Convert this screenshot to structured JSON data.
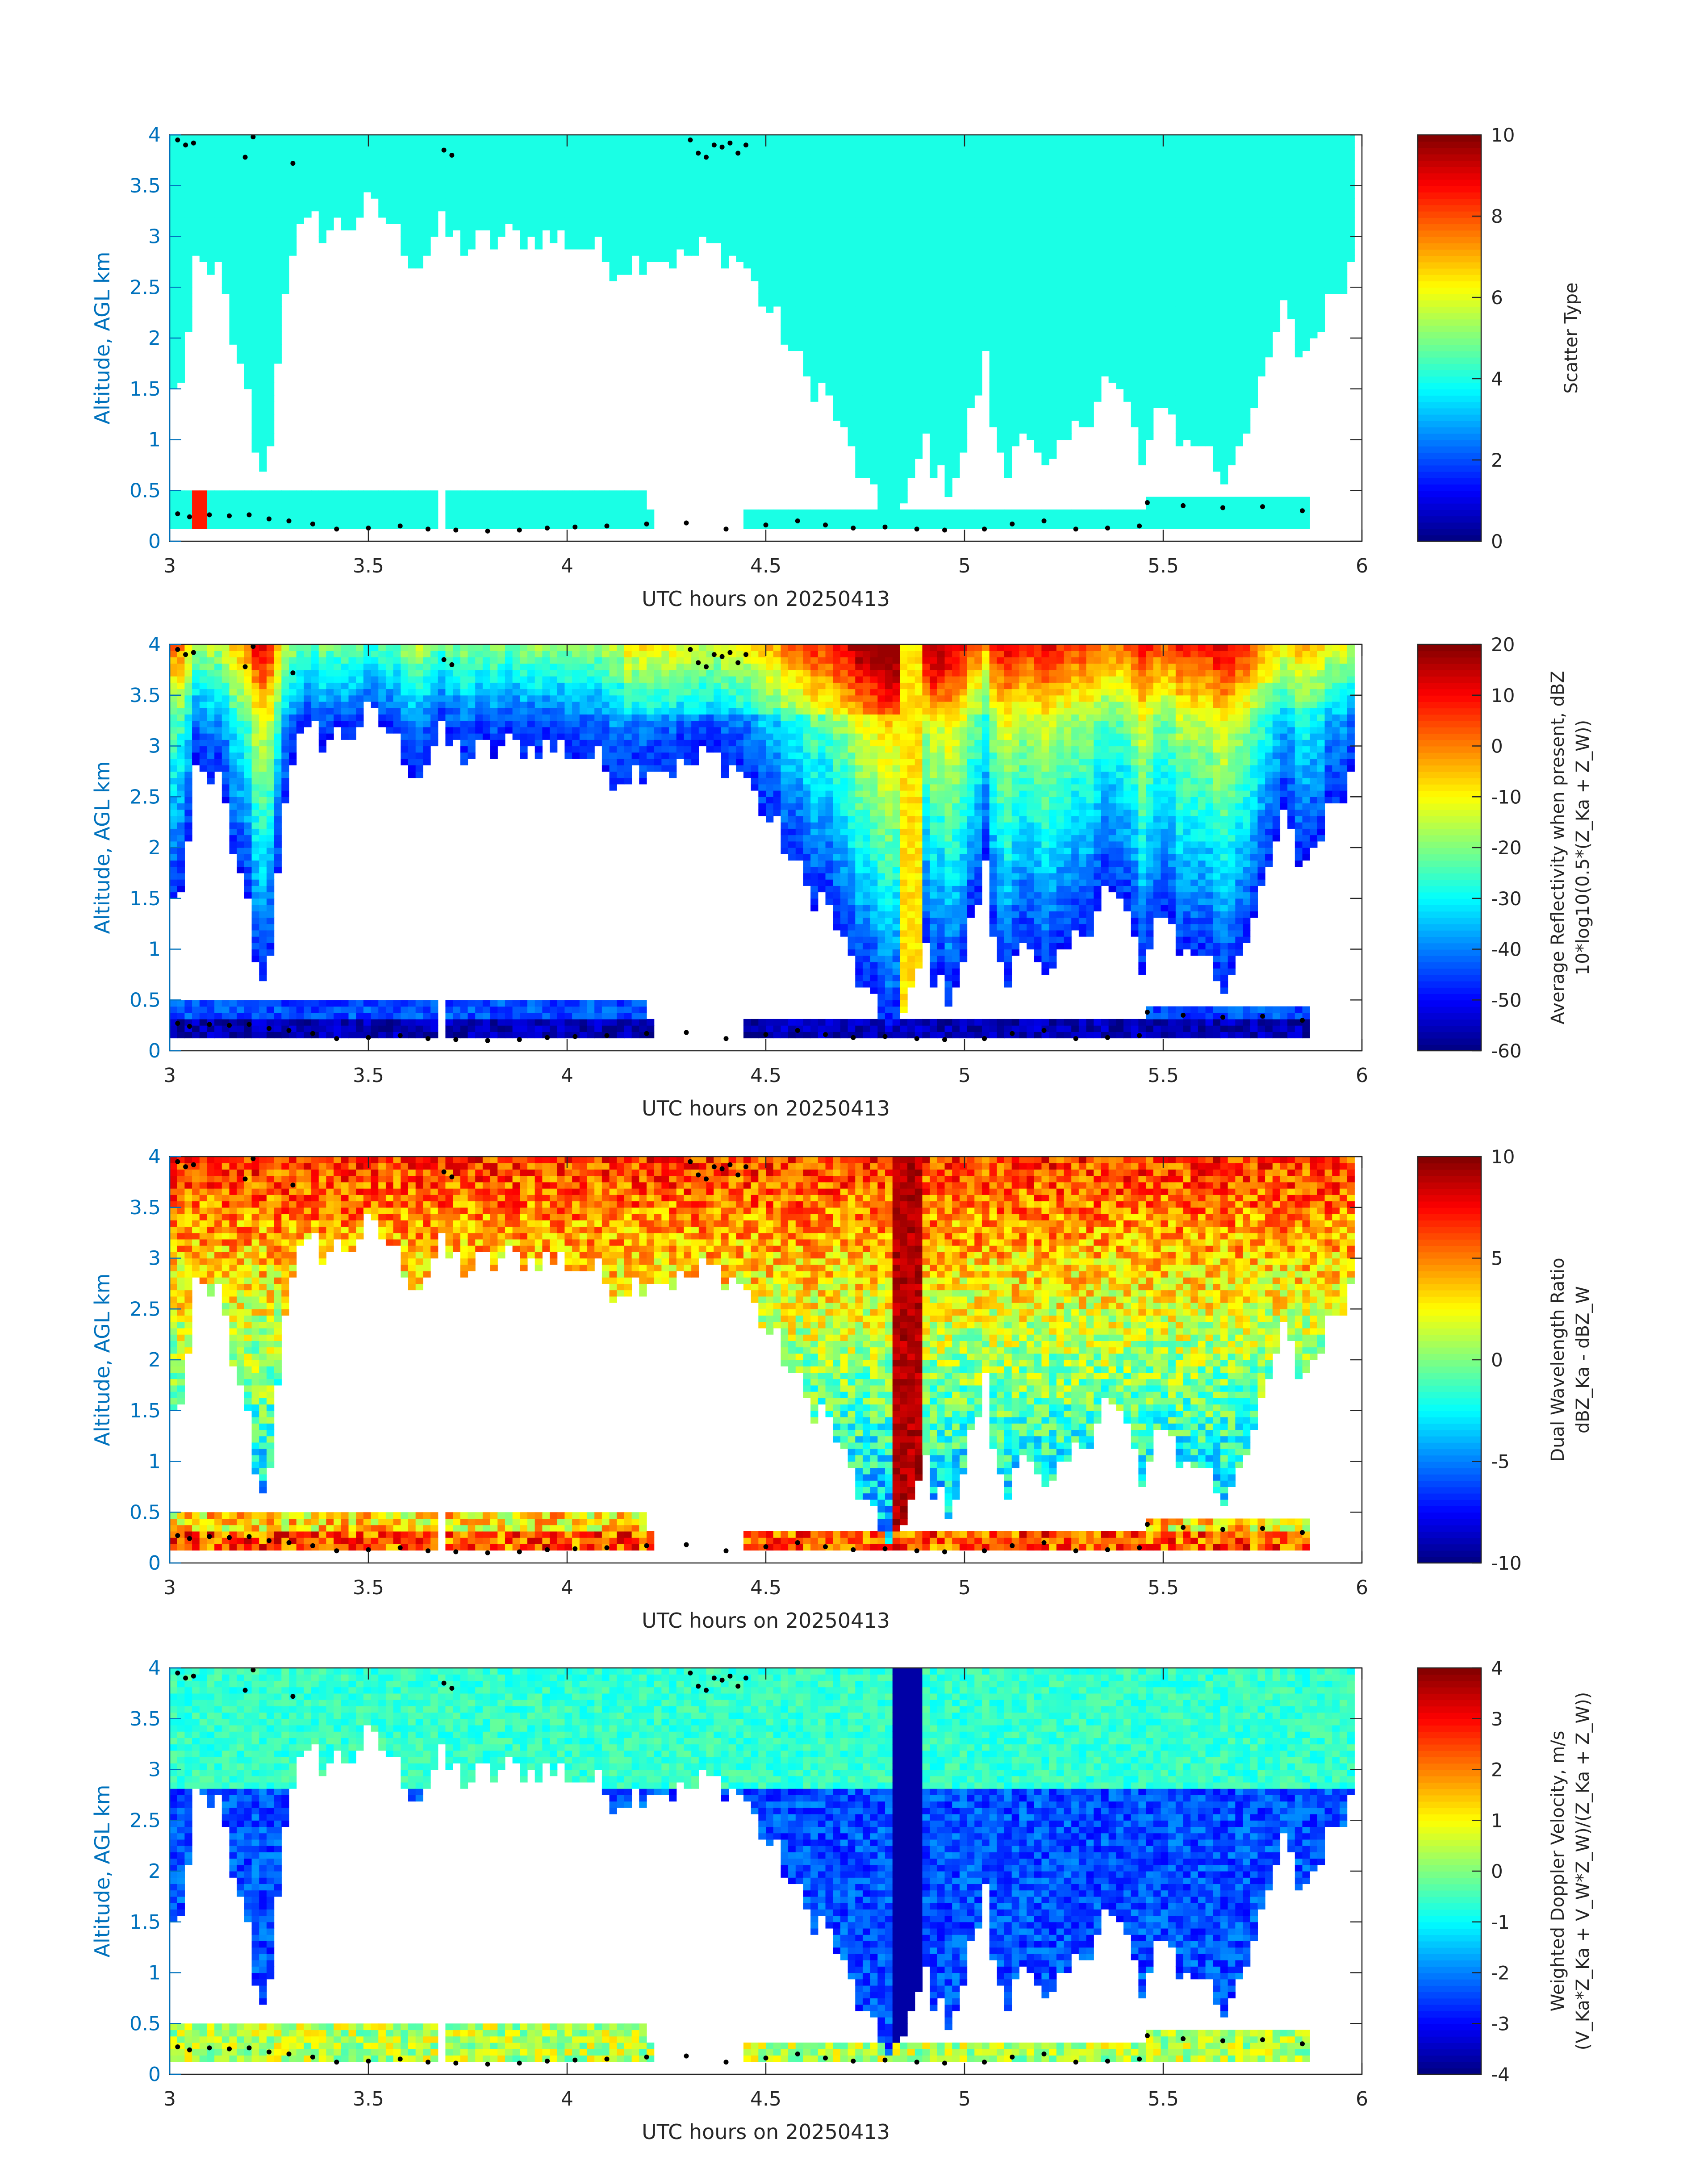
{
  "figure": {
    "xlabel": "UTC hours on 20250413",
    "ylabel": "Altitude, AGL km",
    "xlim": [
      3,
      6
    ],
    "ylim": [
      0,
      4
    ],
    "xticks": [
      "3",
      "3.5",
      "4",
      "4.5",
      "5",
      "5.5",
      "6"
    ],
    "yticks": [
      "0",
      "0.5",
      "1",
      "1.5",
      "2",
      "2.5",
      "3",
      "3.5",
      "4"
    ],
    "axis_color": "#0072bd",
    "text_color": "#262626",
    "background": "#ffffff"
  },
  "chart_data": [
    {
      "type": "heatmap",
      "id": "scatter_type",
      "colorbar_label_lines": [
        "Scatter Type"
      ],
      "colorbar_ticks": [
        "0",
        "2",
        "4",
        "6",
        "8",
        "10"
      ],
      "clim": [
        0,
        10
      ],
      "field": "scatter",
      "dot_overlay": true
    },
    {
      "type": "heatmap",
      "id": "reflectivity",
      "colorbar_label_lines": [
        "Average Reflectivity when present, dBZ",
        "10*log10(0.5*(Z_Ka + Z_W))"
      ],
      "colorbar_ticks": [
        "-60",
        "-50",
        "-40",
        "-30",
        "-20",
        "-10",
        "0",
        "10",
        "20"
      ],
      "clim": [
        -60,
        20
      ],
      "field": "reflectivity",
      "dot_overlay": true
    },
    {
      "type": "heatmap",
      "id": "dual_wavelength_ratio",
      "colorbar_label_lines": [
        "Dual Wavelength Ratio",
        "dBZ_Ka - dBZ_W"
      ],
      "colorbar_ticks": [
        "-10",
        "-5",
        "0",
        "5",
        "10"
      ],
      "clim": [
        -10,
        10
      ],
      "field": "dwr",
      "dot_overlay": true
    },
    {
      "type": "heatmap",
      "id": "doppler_velocity",
      "colorbar_label_lines": [
        "Weighted Doppler Velocity, m/s",
        "(V_Ka*Z_Ka + V_W*Z_W)/(Z_Ka + Z_W))"
      ],
      "colorbar_ticks": [
        "-4",
        "-3",
        "-2",
        "-1",
        "0",
        "1",
        "2",
        "3",
        "4"
      ],
      "clim": [
        -4,
        4
      ],
      "field": "velocity",
      "dot_overlay": true
    }
  ],
  "cloud_structure": {
    "upper_deck_base_km": [
      [
        3.0,
        1.3
      ],
      [
        3.04,
        1.8
      ],
      [
        3.07,
        2.8
      ],
      [
        3.1,
        2.5
      ],
      [
        3.12,
        2.9
      ],
      [
        3.15,
        2.0
      ],
      [
        3.2,
        1.4
      ],
      [
        3.23,
        0.5
      ],
      [
        3.26,
        1.2
      ],
      [
        3.3,
        2.9
      ],
      [
        3.35,
        3.1
      ],
      [
        3.45,
        3.1
      ],
      [
        3.5,
        3.3
      ],
      [
        3.55,
        3.2
      ],
      [
        3.62,
        2.7
      ],
      [
        3.68,
        3.1
      ],
      [
        3.75,
        2.9
      ],
      [
        3.85,
        3.0
      ],
      [
        3.95,
        3.0
      ],
      [
        4.05,
        2.9
      ],
      [
        4.12,
        2.7
      ],
      [
        4.2,
        2.8
      ],
      [
        4.3,
        2.8
      ],
      [
        4.38,
        2.9
      ],
      [
        4.45,
        2.7
      ],
      [
        4.5,
        2.3
      ],
      [
        4.55,
        2.0
      ],
      [
        4.6,
        1.6
      ],
      [
        4.65,
        1.5
      ],
      [
        4.7,
        1.0
      ],
      [
        4.78,
        0.3
      ],
      [
        4.85,
        0.3
      ],
      [
        4.9,
        1.0
      ],
      [
        4.95,
        0.5
      ],
      [
        5.0,
        0.9
      ],
      [
        5.05,
        1.8
      ],
      [
        5.1,
        0.5
      ],
      [
        5.15,
        1.3
      ],
      [
        5.2,
        0.6
      ],
      [
        5.3,
        1.2
      ],
      [
        5.35,
        1.6
      ],
      [
        5.42,
        1.3
      ],
      [
        5.45,
        0.6
      ],
      [
        5.5,
        1.5
      ],
      [
        5.55,
        0.9
      ],
      [
        5.6,
        1.0
      ],
      [
        5.65,
        0.6
      ],
      [
        5.7,
        1.1
      ],
      [
        5.75,
        1.5
      ],
      [
        5.8,
        2.3
      ],
      [
        5.85,
        1.8
      ],
      [
        5.9,
        2.2
      ],
      [
        5.95,
        2.6
      ],
      [
        6.0,
        2.8
      ]
    ],
    "low_layer_segments": [
      [
        3.0,
        3.67
      ],
      [
        3.7,
        4.22
      ],
      [
        4.45,
        5.87
      ]
    ]
  },
  "dots_upper": [
    [
      3.02,
      3.95
    ],
    [
      3.04,
      3.9
    ],
    [
      3.06,
      3.92
    ],
    [
      3.19,
      3.78
    ],
    [
      3.21,
      3.98
    ],
    [
      3.31,
      3.72
    ],
    [
      3.69,
      3.85
    ],
    [
      3.71,
      3.8
    ],
    [
      4.31,
      3.95
    ],
    [
      4.33,
      3.82
    ],
    [
      4.35,
      3.78
    ],
    [
      4.37,
      3.9
    ],
    [
      4.39,
      3.88
    ],
    [
      4.41,
      3.92
    ],
    [
      4.43,
      3.82
    ],
    [
      4.45,
      3.9
    ]
  ],
  "dots_lower": [
    [
      3.02,
      0.27
    ],
    [
      3.05,
      0.24
    ],
    [
      3.1,
      0.26
    ],
    [
      3.15,
      0.25
    ],
    [
      3.2,
      0.26
    ],
    [
      3.25,
      0.22
    ],
    [
      3.3,
      0.2
    ],
    [
      3.36,
      0.17
    ],
    [
      3.42,
      0.12
    ],
    [
      3.5,
      0.13
    ],
    [
      3.58,
      0.15
    ],
    [
      3.65,
      0.12
    ],
    [
      3.72,
      0.11
    ],
    [
      3.8,
      0.1
    ],
    [
      3.88,
      0.11
    ],
    [
      3.95,
      0.13
    ],
    [
      4.02,
      0.14
    ],
    [
      4.1,
      0.15
    ],
    [
      4.2,
      0.17
    ],
    [
      4.3,
      0.18
    ],
    [
      4.4,
      0.12
    ],
    [
      4.5,
      0.16
    ],
    [
      4.58,
      0.2
    ],
    [
      4.65,
      0.16
    ],
    [
      4.72,
      0.13
    ],
    [
      4.8,
      0.14
    ],
    [
      4.88,
      0.12
    ],
    [
      4.95,
      0.11
    ],
    [
      5.05,
      0.12
    ],
    [
      5.12,
      0.17
    ],
    [
      5.2,
      0.2
    ],
    [
      5.28,
      0.12
    ],
    [
      5.36,
      0.13
    ],
    [
      5.44,
      0.15
    ],
    [
      5.46,
      0.38
    ],
    [
      5.55,
      0.35
    ],
    [
      5.65,
      0.33
    ],
    [
      5.75,
      0.34
    ],
    [
      5.85,
      0.3
    ]
  ]
}
